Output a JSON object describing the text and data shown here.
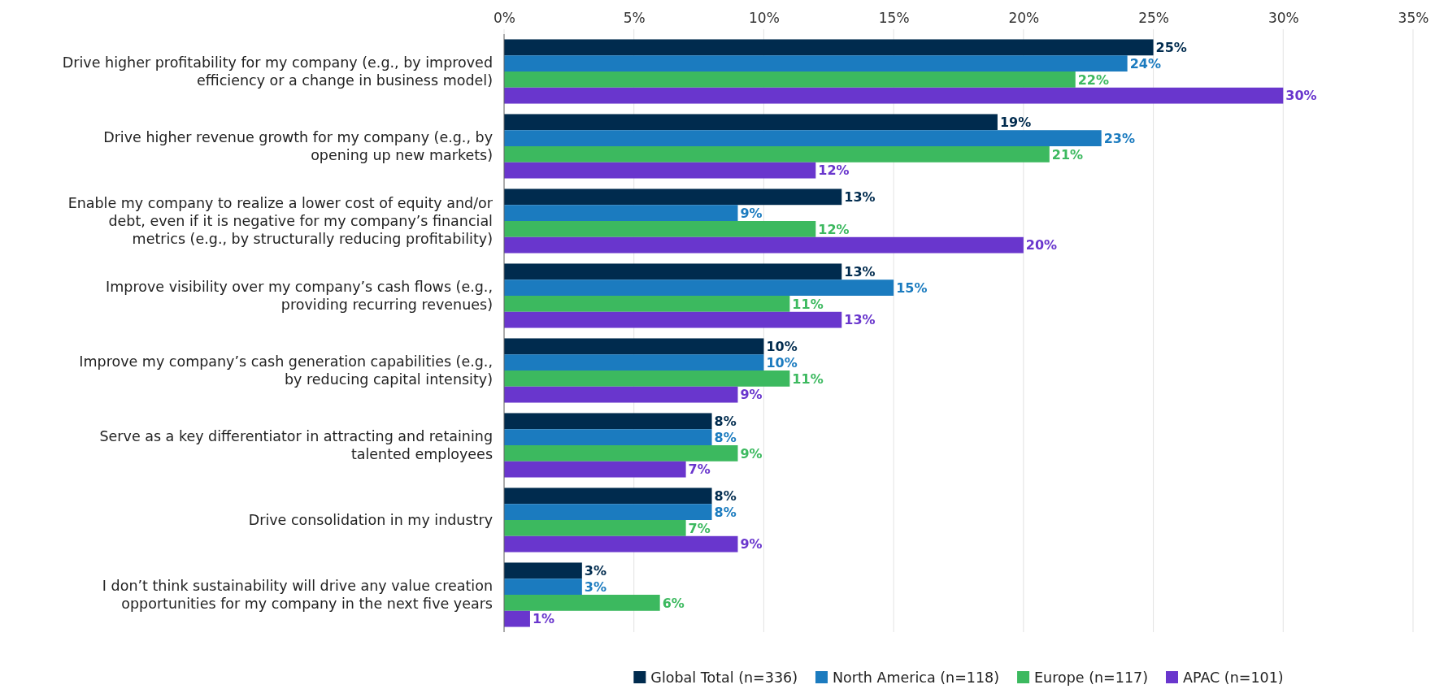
{
  "chart_data": {
    "type": "bar",
    "orientation": "horizontal",
    "categories": [
      "Drive higher profitability for my company (e.g., by improved efficiency or a change in business model)",
      "Drive higher revenue growth for my company (e.g., by opening up new markets)",
      "Enable my company to realize a lower cost of equity and/or debt, even if it is negative for my company’s financial metrics (e.g., by structurally reducing profitability)",
      "Improve visibility over my company’s cash flows (e.g., providing recurring revenues)",
      "Improve my company’s cash generation capabilities (e.g., by reducing capital intensity)",
      "Serve as a key differentiator in attracting and retaining talented employees",
      "Drive consolidation in my industry",
      "I don’t think sustainability will drive any value creation opportunities for my company in the next five years"
    ],
    "series": [
      {
        "name": "Global Total (n=336)",
        "color": "#002b4e",
        "values": [
          25,
          19,
          13,
          13,
          10,
          8,
          8,
          3
        ],
        "value_labels": [
          "25%",
          "19%",
          "13%",
          "13%",
          "10%",
          "8%",
          "8%",
          "3%"
        ]
      },
      {
        "name": "North America (n=118)",
        "color": "#1b7bbf",
        "values": [
          24,
          23,
          9,
          15,
          10,
          8,
          8,
          3
        ],
        "value_labels": [
          "24%",
          "23%",
          "9%",
          "15%",
          "10%",
          "8%",
          "8%",
          "3%"
        ]
      },
      {
        "name": "Europe (n=117)",
        "color": "#3cb95f",
        "values": [
          22,
          21,
          12,
          11,
          11,
          9,
          7,
          6
        ],
        "value_labels": [
          "22%",
          "21%",
          "12%",
          "11%",
          "11%",
          "9%",
          "7%",
          "6%"
        ]
      },
      {
        "name": "APAC (n=101)",
        "color": "#6936cd",
        "values": [
          30,
          12,
          20,
          13,
          9,
          7,
          9,
          1
        ],
        "value_labels": [
          "30%",
          "12%",
          "20%",
          "13%",
          "9%",
          "7%",
          "9%",
          "1%"
        ]
      }
    ],
    "xlim": [
      0,
      35
    ],
    "xticks": [
      {
        "value": 0,
        "label": "0%"
      },
      {
        "value": 5,
        "label": "5%"
      },
      {
        "value": 10,
        "label": "10%"
      },
      {
        "value": 15,
        "label": "15%"
      },
      {
        "value": 20,
        "label": "20%"
      },
      {
        "value": 25,
        "label": "25%"
      },
      {
        "value": 30,
        "label": "30%"
      },
      {
        "value": 35,
        "label": "35%"
      }
    ],
    "grid": "x",
    "legend": "bottom"
  }
}
